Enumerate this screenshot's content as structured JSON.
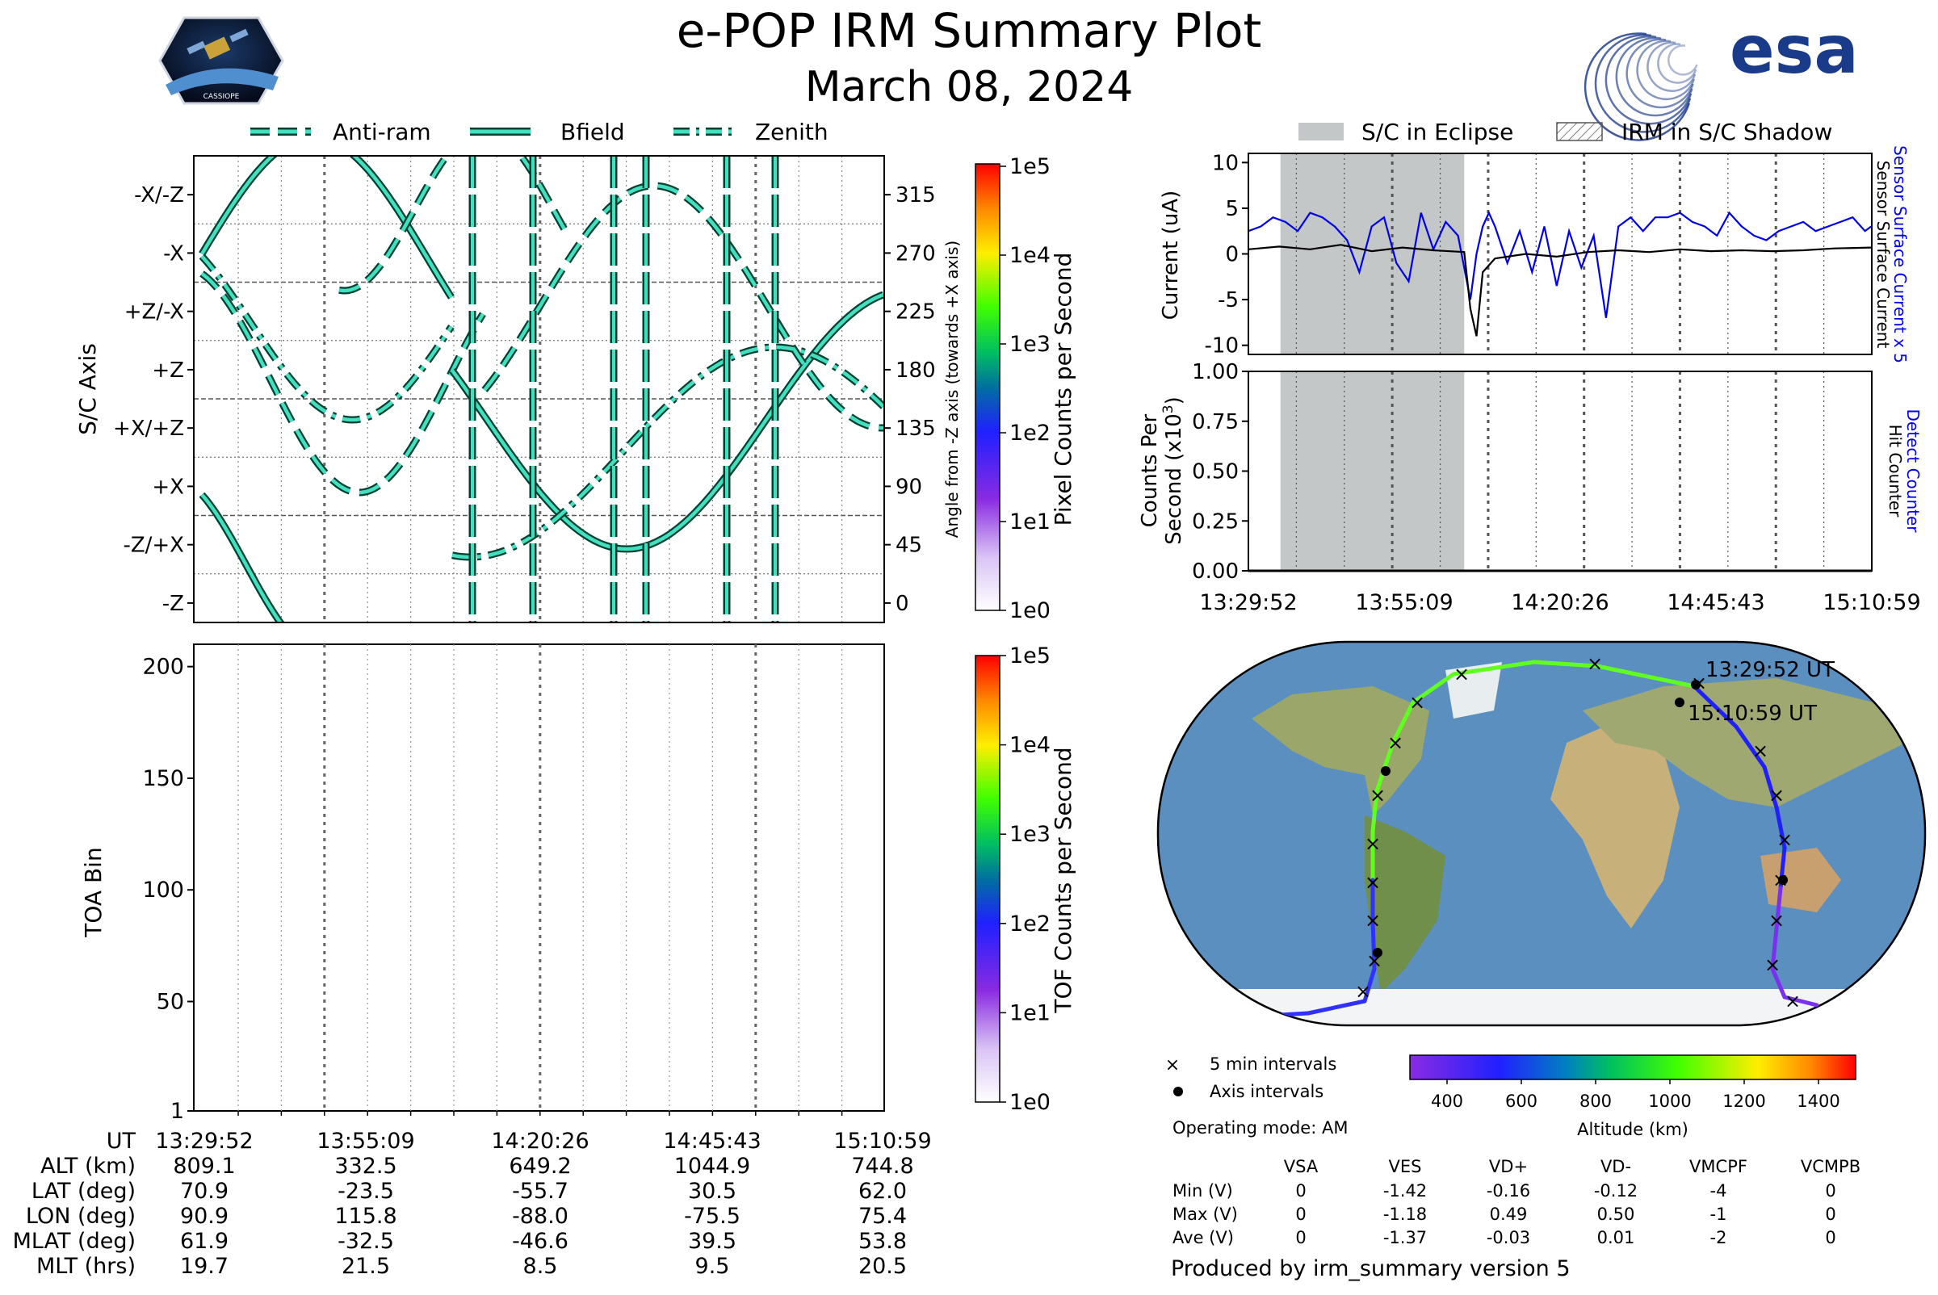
{
  "header": {
    "title": "e-POP IRM Summary Plot",
    "date": "March 08, 2024",
    "mission_logo_text": "CASSIOPE",
    "agency_logo_text": "esa"
  },
  "legend_top": {
    "items": [
      {
        "label": "Anti-ram",
        "style": "dashed"
      },
      {
        "label": "Bfield",
        "style": "solid"
      },
      {
        "label": "Zenith",
        "style": "dashdot"
      }
    ]
  },
  "legend_right": {
    "items": [
      {
        "label": "S/C in Eclipse",
        "style": "gray-fill"
      },
      {
        "label": "IRM in S/C Shadow",
        "style": "hatch"
      }
    ]
  },
  "time_ticks": [
    "13:29:52",
    "13:55:09",
    "14:20:26",
    "14:45:43",
    "15:10:59"
  ],
  "colors": {
    "trace_fill": "#40e0c0",
    "trace_edge": "#004030",
    "sensor_x5": "#0000ee",
    "sensor": "#000000",
    "eclipse": "#c4c7c7"
  },
  "chart_data": [
    {
      "id": "sc-axis",
      "type": "line",
      "xlabel": "",
      "ylabel": "S/C Axis",
      "y2label": "Angle from -Z axis (towards +X axis)",
      "ylim": [
        -15,
        345
      ],
      "y_tick_values": [
        0,
        45,
        90,
        135,
        180,
        225,
        270,
        315
      ],
      "y_tick_labels": [
        "-Z",
        "-Z/+X",
        "+X",
        "+X/+Z",
        "+Z",
        "+Z/-X",
        "-X",
        "-X/-Z"
      ],
      "y2_tick_labels": [
        "0",
        "45",
        "90",
        "135",
        "180",
        "225",
        "270",
        "315"
      ],
      "series": [
        {
          "name": "Anti-ram",
          "style": "dashed"
        },
        {
          "name": "Bfield",
          "style": "solid"
        },
        {
          "name": "Zenith",
          "style": "dashdot"
        }
      ],
      "colorbar": {
        "label": "Pixel Counts per Second",
        "ticks": [
          "1e0",
          "1e1",
          "1e2",
          "1e3",
          "1e4",
          "1e5"
        ],
        "scale": "log"
      }
    },
    {
      "id": "toa",
      "type": "heatmap",
      "ylabel": "TOA Bin",
      "ylim": [
        1,
        210
      ],
      "y_ticks": [
        1,
        50,
        100,
        150,
        200
      ],
      "colorbar": {
        "label": "TOF Counts per Second",
        "ticks": [
          "1e0",
          "1e1",
          "1e2",
          "1e3",
          "1e4",
          "1e5"
        ],
        "scale": "log"
      }
    },
    {
      "id": "current",
      "type": "line",
      "ylabel": "Current (uA)",
      "ylim": [
        -11,
        11
      ],
      "y_ticks": [
        10,
        5,
        0,
        -5,
        -10
      ],
      "y2label_top": "Sensor Surface Current x 5",
      "y2label_bottom": "Sensor Surface Current",
      "x_range_minutes": [
        0,
        101.1
      ],
      "eclipse_minutes": [
        5.2,
        35.0
      ],
      "series": [
        {
          "name": "Sensor Surface Current x 5",
          "x": [
            0,
            2,
            4,
            6,
            8,
            10,
            12,
            14,
            16,
            18,
            20,
            22,
            24,
            26,
            28,
            30,
            32,
            34,
            36,
            37,
            38,
            39,
            40,
            42,
            44,
            46,
            48,
            50,
            52,
            54,
            56,
            58,
            60,
            62,
            64,
            66,
            68,
            70,
            72,
            74,
            76,
            78,
            80,
            82,
            84,
            86,
            88,
            90,
            92,
            94,
            96,
            98,
            100,
            101
          ],
          "y": [
            2.5,
            3.0,
            4.0,
            3.5,
            2.5,
            4.5,
            4.0,
            3.0,
            1.5,
            -2.0,
            3.0,
            4.0,
            -1.0,
            -3.0,
            4.5,
            0.5,
            3.5,
            2.0,
            -5.0,
            0.0,
            3.0,
            4.5,
            3.0,
            -1.0,
            2.5,
            -2.0,
            3.0,
            -3.5,
            2.5,
            -1.5,
            2.0,
            -7.0,
            3.0,
            4.0,
            2.5,
            4.0,
            4.0,
            4.5,
            3.5,
            3.0,
            2.0,
            4.5,
            3.0,
            2.0,
            1.5,
            2.5,
            3.0,
            3.5,
            2.5,
            3.0,
            3.5,
            4.0,
            2.5,
            3.0
          ]
        },
        {
          "name": "Sensor Surface Current",
          "x": [
            0,
            5,
            10,
            15,
            20,
            25,
            30,
            35,
            36,
            37,
            38,
            40,
            45,
            50,
            55,
            60,
            65,
            70,
            75,
            80,
            85,
            90,
            95,
            101
          ],
          "y": [
            0.5,
            0.8,
            0.5,
            1.0,
            0.3,
            0.7,
            0.4,
            0.2,
            -6.0,
            -9.0,
            -2.0,
            -0.5,
            0.0,
            -0.3,
            0.2,
            0.4,
            0.2,
            0.5,
            0.3,
            0.4,
            0.3,
            0.4,
            0.6,
            0.7
          ]
        }
      ]
    },
    {
      "id": "counts",
      "type": "line",
      "ylabel": "Counts Per Second (x10",
      "ylabel_exp": "3",
      "ylabel_tail": ")",
      "ylim": [
        0,
        1
      ],
      "y_ticks": [
        "0.00",
        "0.25",
        "0.50",
        "0.75",
        "1.00"
      ],
      "y2label_top": "Detect Counter",
      "y2label_bottom": "Hit Counter",
      "series": [
        {
          "name": "Detect Counter",
          "x": [
            0,
            101.1
          ],
          "y": [
            0,
            0
          ]
        },
        {
          "name": "Hit Counter",
          "x": [
            0,
            101.1
          ],
          "y": [
            0,
            0
          ]
        }
      ]
    }
  ],
  "stats": {
    "labels": [
      "UT",
      "ALT (km)",
      "LAT (deg)",
      "LON (deg)",
      "MLAT (deg)",
      "MLT (hrs)"
    ],
    "columns": [
      [
        "13:29:52",
        "809.1",
        "70.9",
        "90.9",
        "61.9",
        "19.7"
      ],
      [
        "13:55:09",
        "332.5",
        "-23.5",
        "115.8",
        "-32.5",
        "21.5"
      ],
      [
        "14:20:26",
        "649.2",
        "-55.7",
        "-88.0",
        "-46.6",
        "8.5"
      ],
      [
        "14:45:43",
        "1044.9",
        "30.5",
        "-75.5",
        "39.5",
        "9.5"
      ],
      [
        "15:10:59",
        "744.8",
        "62.0",
        "75.4",
        "53.8",
        "20.5"
      ]
    ]
  },
  "map": {
    "start_label": "13:29:52 UT",
    "end_label": "15:10:59 UT",
    "legend_5min": "5 min intervals",
    "legend_axis": "Axis intervals",
    "colorbar_label": "Altitude (km)",
    "colorbar_ticks": [
      "400",
      "600",
      "800",
      "1000",
      "1200",
      "1400"
    ]
  },
  "voltage": {
    "mode": "Operating mode: AM",
    "headers": [
      "VSA",
      "VES",
      "VD+",
      "VD-",
      "VMCPF",
      "VCMPB"
    ],
    "rows": [
      {
        "label": "Min (V)",
        "values": [
          "0",
          "-1.42",
          "-0.16",
          "-0.12",
          "-4",
          "0"
        ]
      },
      {
        "label": "Max (V)",
        "values": [
          "0",
          "-1.18",
          "0.49",
          "0.50",
          "-1",
          "0"
        ]
      },
      {
        "label": "Ave (V)",
        "values": [
          "0",
          "-1.37",
          "-0.03",
          "0.01",
          "-2",
          "0"
        ]
      }
    ]
  },
  "footer": "Produced by irm_summary version 5"
}
